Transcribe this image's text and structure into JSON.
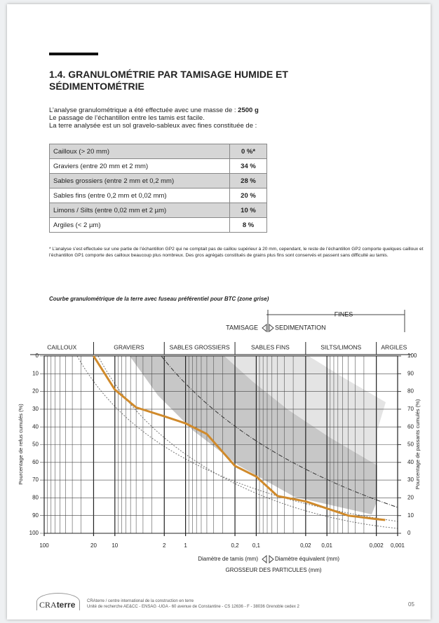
{
  "header": {
    "title": "1.4. GRANULOMÉTRIE PAR TAMISAGE HUMIDE ET SÉDIMENTOMÉTRIE"
  },
  "intro": {
    "line1_text": "L’analyse granulométrique a été effectuée avec une masse de : ",
    "line1_mass": "2500 g",
    "line2": "Le passage de l’échantillon entre les tamis est facile.",
    "line3": "La terre analysée est un sol gravelo-sableux avec fines constituée de :"
  },
  "table": {
    "rows": [
      [
        "Cailloux (> 20 mm)",
        "0 %*"
      ],
      [
        "Graviers (entre 20 mm et 2 mm)",
        "34 %"
      ],
      [
        "Sables grossiers (entre 2 mm et 0,2 mm)",
        "28 %"
      ],
      [
        "Sables fins (entre 0,2 mm et 0,02 mm)",
        "20 %"
      ],
      [
        "Limons / Silts  (entre 0,02 mm et 2 µm)",
        "10 %"
      ],
      [
        "Argiles (< 2 µm)",
        "8 %"
      ]
    ]
  },
  "footnote": "* L’analyse s’est effectuée sur une partie de l’échantillon GP2 qui ne comptait pas de caillou supérieur à 20 mm, cependant, le reste de l’échantillon GP2 comporte quelques cailloux et l’échantillon GP1 comporte des cailloux beaucoup plus nombreux. Des gros agrégats constitués de grains plus fins sont conservés et passent sans difficulté au tamis.",
  "chart_data": {
    "type": "line",
    "title": "Courbe granulométrique de la terre avec fuseau préférentiel pour BTC (zone grise)",
    "zones": [
      "CAILLOUX",
      "GRAVIERS",
      "SABLES GROSSIERS",
      "SABLES FINS",
      "SILTS/LIMONS",
      "ARGILES"
    ],
    "fines_label": "FINES",
    "method_left": "TAMISAGE",
    "method_right": "SEDIMENTATION",
    "xlabel_left": "Diamètre de tamis (mm)",
    "xlabel_right": "Diamètre équivalent (mm)",
    "xlabel": "GROSSEUR DES PARTICULES (mm)",
    "ylabel": "Pourcentage de refus cumulés (%)",
    "y2label": "Pourcentage de passants cumulés (%)",
    "xscale": "log",
    "xlim": [
      100,
      0.001
    ],
    "xticks": [
      100,
      20,
      10,
      2,
      1,
      {
        "value": 0.2,
        "label": "0,2"
      },
      {
        "value": 0.1,
        "label": "0,1"
      },
      {
        "value": 0.02,
        "label": "0,02"
      },
      {
        "value": 0.01,
        "label": "0,01"
      },
      {
        "value": 0.002,
        "label": "0,002"
      },
      {
        "value": 0.001,
        "label": "0,001"
      }
    ],
    "ylim": [
      100,
      0
    ],
    "yticks": [
      0,
      10,
      20,
      30,
      40,
      50,
      60,
      70,
      80,
      90,
      100
    ],
    "y2lim": [
      0,
      100
    ],
    "y2ticks": [
      100,
      90,
      80,
      70,
      60,
      50,
      40,
      30,
      20,
      10,
      0
    ],
    "grid": true,
    "color": "#d08a2b",
    "x": [
      20,
      10,
      5,
      2,
      1,
      0.5,
      0.2,
      0.1,
      0.05,
      0.02,
      0.01,
      0.005,
      0.002,
      0.0015
    ],
    "values": [
      0,
      19,
      29,
      34,
      38,
      44,
      62,
      68,
      79,
      82,
      86,
      90,
      92,
      92.5
    ]
  },
  "footer": {
    "logo_a": "CRA",
    "logo_b": "terre",
    "line1": "CRAterre / centre international de la construction en terre",
    "line2": "Unité de recherche AE&CC - ENSAG -UGA - 60 avenue de Constantine  - CS 12636 - F - 38036 Grenoble cedex 2",
    "page": "05"
  }
}
